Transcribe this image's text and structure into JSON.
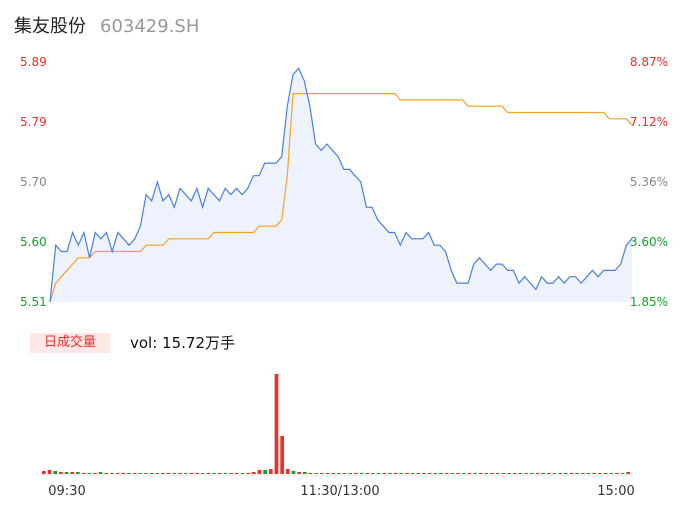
{
  "header": {
    "name": "集友股份",
    "code": "603429.SH"
  },
  "colors": {
    "up": "#e8322c",
    "down": "#1ba02c",
    "flat": "#888888",
    "price_line": "#4a7fe0",
    "avg_line": "#f3a321",
    "area_fill": "#edf2fc"
  },
  "volume": {
    "tab_label": "日成交量",
    "summary": "vol: 15.72万手"
  },
  "chart_data": [
    {
      "type": "line",
      "title": "",
      "y_ticks": [
        "5.89",
        "5.79",
        "5.70",
        "5.60",
        "5.51"
      ],
      "y2_ticks": [
        "8.87%",
        "7.12%",
        "5.36%",
        "3.60%",
        "1.85%"
      ],
      "ylim": [
        5.51,
        5.89
      ],
      "x_ticks": [
        "09:30",
        "11:30/13:00",
        "15:00"
      ],
      "series": [
        {
          "values": [
            5.51,
            5.6,
            5.59,
            5.59,
            5.62,
            5.6,
            5.62,
            5.58,
            5.62,
            5.61,
            5.62,
            5.59,
            5.62,
            5.61,
            5.6,
            5.61,
            5.63,
            5.68,
            5.67,
            5.7,
            5.67,
            5.68,
            5.66,
            5.69,
            5.68,
            5.67,
            5.69,
            5.66,
            5.69,
            5.68,
            5.67,
            5.69,
            5.68,
            5.69,
            5.68,
            5.69,
            5.71,
            5.71,
            5.73,
            5.73,
            5.73,
            5.74,
            5.82,
            5.87,
            5.88,
            5.86,
            5.82,
            5.76,
            5.75,
            5.76,
            5.75,
            5.74,
            5.72,
            5.72,
            5.71,
            5.7,
            5.66,
            5.66,
            5.64,
            5.63,
            5.62,
            5.62,
            5.6,
            5.62,
            5.61,
            5.61,
            5.61,
            5.62,
            5.6,
            5.6,
            5.59,
            5.56,
            5.54,
            5.54,
            5.54,
            5.57,
            5.58,
            5.57,
            5.56,
            5.57,
            5.57,
            5.56,
            5.56,
            5.54,
            5.55,
            5.54,
            5.53,
            5.55,
            5.54,
            5.54,
            5.55,
            5.54,
            5.55,
            5.55,
            5.54,
            5.55,
            5.56,
            5.55,
            5.56,
            5.56,
            5.56,
            5.57,
            5.6,
            5.61
          ]
        },
        {
          "values": [
            5.51,
            5.54,
            5.55,
            5.56,
            5.57,
            5.58,
            5.58,
            5.58,
            5.59,
            5.59,
            5.59,
            5.59,
            5.59,
            5.59,
            5.59,
            5.59,
            5.59,
            5.6,
            5.6,
            5.6,
            5.6,
            5.61,
            5.61,
            5.61,
            5.61,
            5.61,
            5.61,
            5.61,
            5.61,
            5.62,
            5.62,
            5.62,
            5.62,
            5.62,
            5.62,
            5.62,
            5.62,
            5.63,
            5.63,
            5.63,
            5.63,
            5.64,
            5.71,
            5.84,
            5.84,
            5.84,
            5.84,
            5.84,
            5.84,
            5.84,
            5.84,
            5.84,
            5.84,
            5.84,
            5.84,
            5.84,
            5.84,
            5.84,
            5.84,
            5.84,
            5.84,
            5.84,
            5.83,
            5.83,
            5.83,
            5.83,
            5.83,
            5.83,
            5.83,
            5.83,
            5.83,
            5.83,
            5.83,
            5.83,
            5.82,
            5.82,
            5.82,
            5.82,
            5.82,
            5.82,
            5.82,
            5.81,
            5.81,
            5.81,
            5.81,
            5.81,
            5.81,
            5.81,
            5.81,
            5.81,
            5.81,
            5.81,
            5.81,
            5.81,
            5.81,
            5.81,
            5.81,
            5.81,
            5.81,
            5.8,
            5.8,
            5.8,
            5.8,
            5.79
          ]
        }
      ]
    },
    {
      "type": "bar",
      "title": "",
      "values": [
        3,
        4,
        3,
        2,
        2,
        2,
        2,
        1,
        1,
        1,
        2,
        1,
        1,
        1,
        1,
        1,
        1,
        1,
        1,
        1,
        1,
        1,
        1,
        1,
        1,
        1,
        1,
        1,
        1,
        1,
        1,
        1,
        1,
        1,
        1,
        1,
        1,
        2,
        4,
        4,
        5,
        100,
        38,
        5,
        3,
        2,
        2,
        1,
        1,
        1,
        1,
        1,
        1,
        1,
        1,
        1,
        1,
        1,
        1,
        1,
        1,
        1,
        1,
        1,
        1,
        1,
        1,
        1,
        1,
        1,
        1,
        1,
        1,
        1,
        1,
        1,
        1,
        1,
        1,
        1,
        1,
        1,
        1,
        1,
        1,
        1,
        1,
        1,
        1,
        1,
        1,
        1,
        1,
        1,
        1,
        1,
        1,
        1,
        1,
        1,
        1,
        1,
        1,
        2
      ],
      "colors": [
        "up",
        "up",
        "down",
        "up",
        "down",
        "up",
        "down",
        "up",
        "down",
        "up",
        "down",
        "up",
        "down",
        "up",
        "up",
        "down",
        "up",
        "down",
        "down",
        "up",
        "down",
        "up",
        "up",
        "down",
        "up",
        "down",
        "up",
        "up",
        "down",
        "up",
        "down",
        "up",
        "down",
        "up",
        "up",
        "down",
        "up",
        "up",
        "up",
        "down",
        "up",
        "up",
        "up",
        "up",
        "down",
        "up",
        "down",
        "up",
        "down",
        "up",
        "down",
        "up",
        "down",
        "up",
        "down",
        "up",
        "down",
        "up",
        "down",
        "down",
        "up",
        "down",
        "up",
        "down",
        "up",
        "down",
        "up",
        "down",
        "up",
        "down",
        "down",
        "up",
        "down",
        "up",
        "down",
        "up",
        "down",
        "up",
        "down",
        "up",
        "down",
        "up",
        "down",
        "up",
        "down",
        "up",
        "down",
        "up",
        "down",
        "up",
        "down",
        "up",
        "down",
        "up",
        "down",
        "up",
        "down",
        "up",
        "down",
        "up",
        "down",
        "up",
        "down",
        "up"
      ]
    }
  ]
}
